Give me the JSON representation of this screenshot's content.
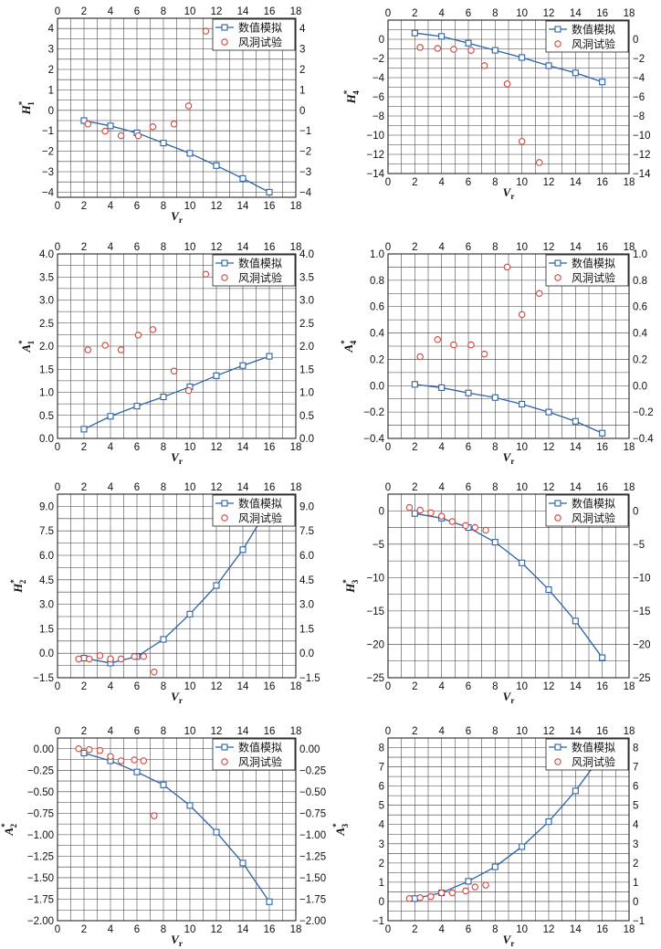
{
  "chart_data": [
    {
      "type": "line",
      "ylabel": {
        "symbol": "H",
        "sup": "*",
        "sub": "1"
      },
      "xlabel": {
        "symbol": "V",
        "sub": "r"
      },
      "xlim": [
        0,
        18
      ],
      "ylim": [
        -4.25,
        4.5
      ],
      "xticks": [
        0,
        2,
        4,
        6,
        8,
        10,
        12,
        14,
        16,
        18
      ],
      "xticklabels": [
        "0",
        "2",
        "4",
        "6",
        "8",
        "10",
        "12",
        "14",
        "16",
        "18"
      ],
      "yticks": [
        4,
        3,
        2,
        1,
        0,
        -1,
        -2,
        -3,
        -4
      ],
      "yticklabels": [
        "4",
        "3",
        "2",
        "1",
        "0",
        "−1",
        "−2",
        "−3",
        "−4"
      ],
      "grid": true,
      "xgrid_step": 1,
      "ygrid_step": 0.5,
      "legend": "top-right",
      "series": [
        {
          "name": "数值模拟",
          "marker": "square",
          "line": true,
          "color": "#2b62a8",
          "x": [
            2,
            4,
            6,
            8,
            10,
            12,
            14,
            16
          ],
          "y": [
            -0.5,
            -0.76,
            -1.1,
            -1.6,
            -2.1,
            -2.7,
            -3.33,
            -4.0
          ]
        },
        {
          "name": "风洞试验",
          "marker": "circle",
          "line": false,
          "color": "#d0453d",
          "x": [
            2.3,
            3.6,
            4.8,
            6.1,
            7.2,
            8.8,
            9.9,
            11.2
          ],
          "y": [
            -0.67,
            -1.02,
            -1.24,
            -1.24,
            -0.8,
            -0.67,
            0.22,
            3.87
          ]
        }
      ]
    },
    {
      "type": "line",
      "ylabel": {
        "symbol": "H",
        "sup": "*",
        "sub": "4"
      },
      "xlabel": {
        "symbol": "V",
        "sub": "r"
      },
      "xlim": [
        0,
        18
      ],
      "ylim": [
        -14,
        2
      ],
      "xticks": [
        0,
        2,
        4,
        6,
        8,
        10,
        12,
        14,
        16,
        18
      ],
      "xticklabels": [
        "0",
        "2",
        "4",
        "6",
        "8",
        "10",
        "12",
        "14",
        "16",
        "18"
      ],
      "yticks": [
        0,
        -2,
        -4,
        -6,
        -8,
        -10,
        -12,
        -14
      ],
      "yticklabels": [
        "0",
        "−2",
        "−4",
        "−6",
        "−8",
        "−10",
        "−12",
        "−14"
      ],
      "grid": true,
      "xgrid_step": 1,
      "ygrid_step": 1,
      "legend": "top-right",
      "series": [
        {
          "name": "数值模拟",
          "marker": "square",
          "line": true,
          "color": "#2b62a8",
          "x": [
            2,
            4,
            6,
            8,
            10,
            12,
            14,
            16
          ],
          "y": [
            0.65,
            0.3,
            -0.4,
            -1.15,
            -1.9,
            -2.75,
            -3.5,
            -4.45
          ]
        },
        {
          "name": "风洞试验",
          "marker": "circle",
          "line": false,
          "color": "#d0453d",
          "x": [
            2.4,
            3.7,
            4.9,
            6.2,
            7.2,
            8.9,
            10.0,
            11.3
          ],
          "y": [
            -0.85,
            -0.95,
            -1.05,
            -1.15,
            -2.75,
            -4.65,
            -10.65,
            -12.85
          ]
        }
      ]
    },
    {
      "type": "line",
      "ylabel": {
        "symbol": "A",
        "sup": "*",
        "sub": "1"
      },
      "xlabel": {
        "symbol": "V",
        "sub": "r"
      },
      "xlim": [
        0,
        18
      ],
      "ylim": [
        0,
        4.0
      ],
      "xticks": [
        0,
        2,
        4,
        6,
        8,
        10,
        12,
        14,
        16,
        18
      ],
      "xticklabels": [
        "0",
        "2",
        "4",
        "6",
        "8",
        "10",
        "12",
        "14",
        "16",
        "18"
      ],
      "yticks": [
        4.0,
        3.5,
        3.0,
        2.5,
        2.0,
        1.5,
        1.0,
        0.5,
        0.0
      ],
      "yticklabels": [
        "4.0",
        "3.5",
        "3.0",
        "2.5",
        "2.0",
        "1.5",
        "1.0",
        "0.5",
        "0.0"
      ],
      "grid": true,
      "xgrid_step": 1,
      "ygrid_step": 0.25,
      "legend": "top-right",
      "series": [
        {
          "name": "数值模拟",
          "marker": "square",
          "line": true,
          "color": "#2b62a8",
          "x": [
            2,
            4,
            6,
            8,
            10,
            12,
            14,
            16
          ],
          "y": [
            0.2,
            0.48,
            0.7,
            0.9,
            1.12,
            1.36,
            1.58,
            1.78
          ]
        },
        {
          "name": "风洞试验",
          "marker": "circle",
          "line": false,
          "color": "#d0453d",
          "x": [
            2.3,
            3.6,
            4.8,
            6.1,
            7.2,
            8.8,
            9.9,
            11.2
          ],
          "y": [
            1.92,
            2.02,
            1.92,
            2.24,
            2.36,
            1.46,
            1.04,
            3.56
          ]
        }
      ]
    },
    {
      "type": "line",
      "ylabel": {
        "symbol": "A",
        "sup": "*",
        "sub": "4"
      },
      "xlabel": {
        "symbol": "V",
        "sub": "r"
      },
      "xlim": [
        0,
        18
      ],
      "ylim": [
        -0.4,
        1.0
      ],
      "xticks": [
        0,
        2,
        4,
        6,
        8,
        10,
        12,
        14,
        16,
        18
      ],
      "xticklabels": [
        "0",
        "2",
        "4",
        "6",
        "8",
        "10",
        "12",
        "14",
        "16",
        "18"
      ],
      "yticks": [
        1.0,
        0.8,
        0.6,
        0.4,
        0.2,
        0.0,
        -0.2,
        -0.4
      ],
      "yticklabels": [
        "1.0",
        "0.8",
        "0.6",
        "0.4",
        "0.2",
        "0.0",
        "−0.2",
        "−0.4"
      ],
      "grid": true,
      "xgrid_step": 1,
      "ygrid_step": 0.1,
      "legend": "top-right",
      "series": [
        {
          "name": "数值模拟",
          "marker": "square",
          "line": true,
          "color": "#2b62a8",
          "x": [
            2,
            4,
            6,
            8,
            10,
            12,
            14,
            16
          ],
          "y": [
            0.01,
            -0.015,
            -0.055,
            -0.09,
            -0.14,
            -0.2,
            -0.27,
            -0.36
          ]
        },
        {
          "name": "风洞试验",
          "marker": "circle",
          "line": false,
          "color": "#d0453d",
          "x": [
            2.4,
            3.7,
            4.9,
            6.2,
            7.2,
            8.9,
            10.0,
            11.3
          ],
          "y": [
            0.22,
            0.35,
            0.31,
            0.31,
            0.24,
            0.9,
            0.54,
            0.7
          ]
        }
      ]
    },
    {
      "type": "line",
      "ylabel": {
        "symbol": "H",
        "sup": "*",
        "sub": "2"
      },
      "xlabel": {
        "symbol": "V",
        "sub": "r"
      },
      "xlim": [
        0,
        18
      ],
      "ylim": [
        -1.5,
        9.75
      ],
      "xticks": [
        0,
        2,
        4,
        6,
        8,
        10,
        12,
        14,
        16,
        18
      ],
      "xticklabels": [
        "0",
        "2",
        "4",
        "6",
        "8",
        "10",
        "12",
        "14",
        "16",
        "18"
      ],
      "yticks": [
        9.0,
        7.5,
        6.0,
        4.5,
        3.0,
        1.5,
        0.0,
        -1.5
      ],
      "yticklabels": [
        "9.0",
        "7.5",
        "6.0",
        "4.5",
        "3.0",
        "1.5",
        "0.0",
        "−1.5"
      ],
      "grid": true,
      "xgrid_step": 1,
      "ygrid_step": 0.75,
      "legend": "top-right",
      "series": [
        {
          "name": "数值模拟",
          "marker": "square",
          "line": true,
          "color": "#2b62a8",
          "x": [
            2,
            4,
            6,
            8,
            10,
            12,
            14,
            16
          ],
          "y": [
            -0.3,
            -0.6,
            -0.2,
            0.85,
            2.4,
            4.15,
            6.35,
            9.0
          ]
        },
        {
          "name": "风洞试验",
          "marker": "circle",
          "line": false,
          "color": "#d0453d",
          "x": [
            1.6,
            2.4,
            3.2,
            4.0,
            4.8,
            5.8,
            6.5,
            7.3
          ],
          "y": [
            -0.35,
            -0.35,
            -0.15,
            -0.35,
            -0.35,
            -0.2,
            -0.2,
            -1.15
          ]
        }
      ]
    },
    {
      "type": "line",
      "ylabel": {
        "symbol": "H",
        "sup": "*",
        "sub": "3"
      },
      "xlabel": {
        "symbol": "V",
        "sub": "r"
      },
      "xlim": [
        0,
        18
      ],
      "ylim": [
        -25,
        2.5
      ],
      "xticks": [
        0,
        2,
        4,
        6,
        8,
        10,
        12,
        14,
        16,
        18
      ],
      "xticklabels": [
        "0",
        "2",
        "4",
        "6",
        "8",
        "10",
        "12",
        "14",
        "16",
        "18"
      ],
      "yticks": [
        0,
        -5,
        -10,
        -15,
        -20,
        -25
      ],
      "yticklabels": [
        "0",
        "−5",
        "−10",
        "−15",
        "−20",
        "−25"
      ],
      "grid": true,
      "xgrid_step": 1,
      "ygrid_step": 2.5,
      "legend": "top-right",
      "series": [
        {
          "name": "数值模拟",
          "marker": "square",
          "line": true,
          "color": "#2b62a8",
          "x": [
            2,
            4,
            6,
            8,
            10,
            12,
            14,
            16
          ],
          "y": [
            -0.4,
            -1.1,
            -2.5,
            -4.7,
            -7.8,
            -11.8,
            -16.5,
            -22.0
          ]
        },
        {
          "name": "风洞试验",
          "marker": "circle",
          "line": false,
          "color": "#d0453d",
          "x": [
            1.6,
            2.4,
            3.2,
            4.0,
            4.8,
            5.8,
            6.5,
            7.3
          ],
          "y": [
            0.5,
            0.1,
            -0.3,
            -0.8,
            -1.6,
            -2.2,
            -2.5,
            -2.9
          ]
        }
      ]
    },
    {
      "type": "line",
      "ylabel": {
        "symbol": "A",
        "sup": "*",
        "sub": "2"
      },
      "xlabel": {
        "symbol": "V",
        "sub": "r"
      },
      "xlim": [
        0,
        18
      ],
      "ylim": [
        -2.0,
        0.125
      ],
      "xticks": [
        0,
        2,
        4,
        6,
        8,
        10,
        12,
        14,
        16,
        18
      ],
      "xticklabels": [
        "0",
        "2",
        "4",
        "6",
        "8",
        "10",
        "12",
        "14",
        "16",
        "18"
      ],
      "yticks": [
        0,
        -0.25,
        -0.5,
        -0.75,
        -1.0,
        -1.25,
        -1.5,
        -1.75,
        -2.0
      ],
      "yticklabels": [
        "0.00",
        "−0.25",
        "−0.50",
        "−0.75",
        "−1.00",
        "−1.25",
        "−1.50",
        "−1.75",
        "−2.00"
      ],
      "grid": true,
      "xgrid_step": 1,
      "ygrid_step": 0.125,
      "legend": "top-right",
      "series": [
        {
          "name": "数值模拟",
          "marker": "square",
          "line": true,
          "color": "#2b62a8",
          "x": [
            2,
            4,
            6,
            8,
            10,
            12,
            14,
            16
          ],
          "y": [
            -0.05,
            -0.14,
            -0.27,
            -0.42,
            -0.66,
            -0.97,
            -1.33,
            -1.78
          ]
        },
        {
          "name": "风洞试验",
          "marker": "circle",
          "line": false,
          "color": "#d0453d",
          "x": [
            1.6,
            2.4,
            3.2,
            4.0,
            4.8,
            5.8,
            6.5,
            7.3
          ],
          "y": [
            0.0,
            -0.01,
            -0.02,
            -0.09,
            -0.14,
            -0.13,
            -0.14,
            -0.78
          ]
        }
      ]
    },
    {
      "type": "line",
      "ylabel": {
        "symbol": "A",
        "sup": "*",
        "sub": "3"
      },
      "xlabel": {
        "symbol": "V",
        "sub": "r"
      },
      "xlim": [
        0,
        18
      ],
      "ylim": [
        -1,
        8.5
      ],
      "xticks": [
        0,
        2,
        4,
        6,
        8,
        10,
        12,
        14,
        16,
        18
      ],
      "xticklabels": [
        "0",
        "2",
        "4",
        "6",
        "8",
        "10",
        "12",
        "14",
        "16",
        "18"
      ],
      "yticks": [
        8,
        7,
        6,
        5,
        4,
        3,
        2,
        1,
        0,
        -1
      ],
      "yticklabels": [
        "8",
        "7",
        "6",
        "5",
        "4",
        "3",
        "2",
        "1",
        "0",
        "−1"
      ],
      "grid": true,
      "xgrid_step": 1,
      "ygrid_step": 0.5,
      "legend": "top-right",
      "series": [
        {
          "name": "数值模拟",
          "marker": "square",
          "line": true,
          "color": "#2b62a8",
          "x": [
            2,
            4,
            6,
            8,
            10,
            12,
            14,
            16
          ],
          "y": [
            0.15,
            0.45,
            1.05,
            1.8,
            2.85,
            4.15,
            5.75,
            7.65
          ]
        },
        {
          "name": "风洞试验",
          "marker": "circle",
          "line": false,
          "color": "#d0453d",
          "x": [
            1.6,
            2.4,
            3.2,
            4.0,
            4.8,
            5.8,
            6.5,
            7.3
          ],
          "y": [
            0.15,
            0.2,
            0.25,
            0.45,
            0.45,
            0.55,
            0.75,
            0.85
          ]
        }
      ]
    }
  ]
}
